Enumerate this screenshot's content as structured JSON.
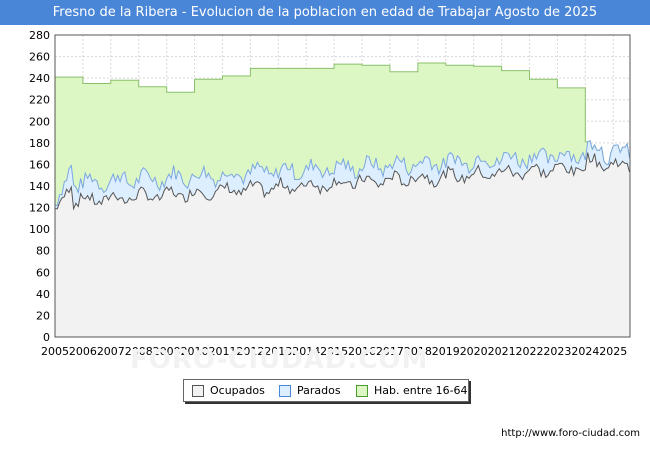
{
  "chart_data": {
    "type": "area",
    "title": "Fresno de la Ribera - Evolucion de la poblacion en edad de Trabajar Agosto de 2025",
    "ylim": [
      0,
      280
    ],
    "xlim": [
      2005,
      2025.6
    ],
    "yticks": [
      0,
      20,
      40,
      60,
      80,
      100,
      120,
      140,
      160,
      180,
      200,
      220,
      240,
      260,
      280
    ],
    "xticks": [
      "2005",
      "2006",
      "2007",
      "2008",
      "2009",
      "2010",
      "2011",
      "2012",
      "2013",
      "2014",
      "2015",
      "2016",
      "2017",
      "2018",
      "2019",
      "2020",
      "2021",
      "2022",
      "2023",
      "2024",
      "2025"
    ],
    "grid": true,
    "legend_position": "bottom-center",
    "colors": {
      "ocupados_fill": "#f2f2f2",
      "ocupados_line": "#555555",
      "parados_fill": "#ddeeff",
      "parados_line": "#7aa7e0",
      "hab_fill": "#ddf7c4",
      "hab_line": "#8ac06a"
    },
    "series": [
      {
        "name": "Hab. entre 16-64",
        "annual_values": {
          "years": [
            2005,
            2006,
            2007,
            2008,
            2009,
            2010,
            2011,
            2012,
            2013,
            2014,
            2015,
            2016,
            2017,
            2018,
            2019,
            2020,
            2021,
            2022,
            2023
          ],
          "values": [
            241,
            235,
            238,
            232,
            227,
            239,
            242,
            249,
            249,
            249,
            253,
            252,
            246,
            254,
            252,
            251,
            247,
            239,
            231
          ]
        }
      },
      {
        "name": "Parados",
        "approx_range": [
          140,
          185
        ]
      },
      {
        "name": "Ocupados",
        "approx_range": [
          118,
          175
        ]
      }
    ]
  },
  "legend": {
    "ocupados": "Ocupados",
    "parados": "Parados",
    "hab": "Hab. entre 16-64"
  },
  "watermark": "FORO-CIUDAD.COM",
  "source": "http://www.foro-ciudad.com"
}
